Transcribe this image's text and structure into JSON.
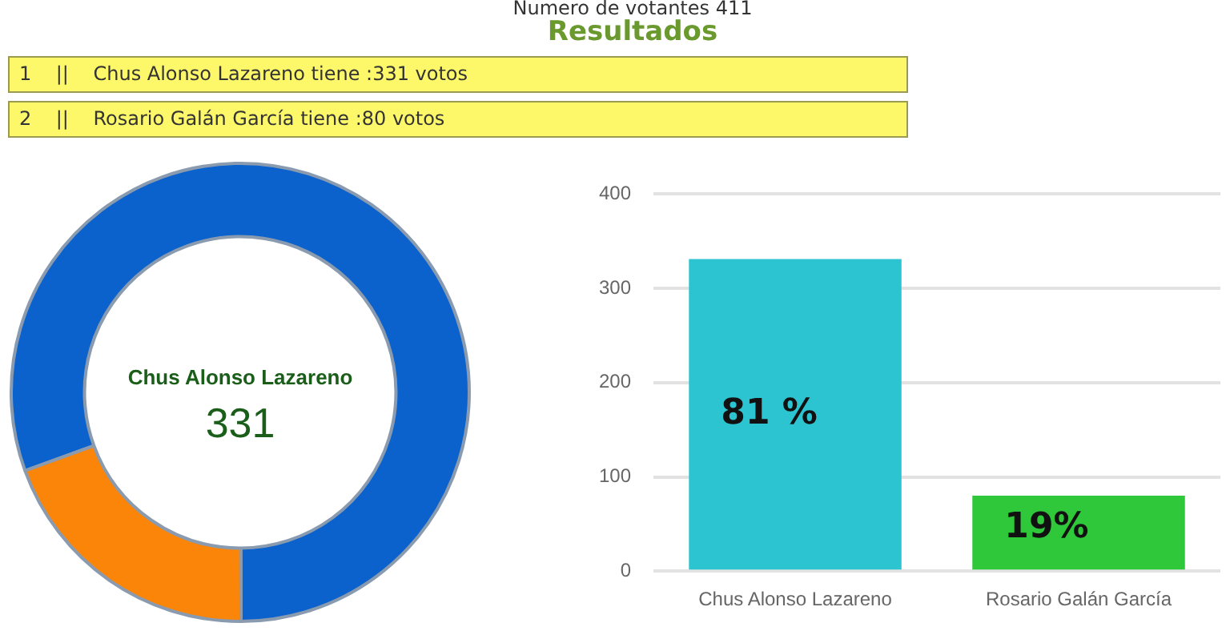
{
  "chart_data": [
    {
      "type": "other",
      "title": "Resultados",
      "subtitle": "Numero de votantes 411",
      "annotations": [
        "1    ||    Chus Alonso Lazareno tiene :331 votos",
        "2    ||    Rosario Galán García tiene :80 votos"
      ]
    },
    {
      "type": "donut",
      "categories": [
        null,
        null
      ],
      "values": [
        80.5,
        19.5
      ],
      "colors": [
        "#0b62cc",
        "#fb8509"
      ],
      "annotations": [
        "Chus Alonso Lazareno",
        "331"
      ],
      "legend": false
    },
    {
      "type": "bar",
      "categories": [
        "Chus Alonso Lazareno",
        "Rosario Galán García"
      ],
      "values": [
        331,
        80
      ],
      "colors": [
        "#2bc4d0",
        "#2ec83a"
      ],
      "ylim": [
        0,
        400
      ],
      "yticks": [
        0,
        100,
        200,
        300,
        400
      ],
      "grid": "y",
      "legend": false,
      "annotations": [
        "81 %",
        "19%"
      ]
    }
  ]
}
